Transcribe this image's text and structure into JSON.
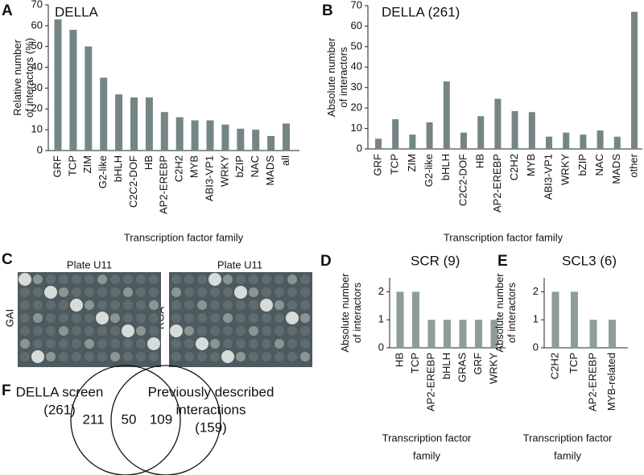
{
  "chart_data": [
    {
      "type": "bar",
      "title": "DELLA",
      "y_label": [
        "Relative number",
        "of interactors (%)"
      ],
      "x_label": "Transcription factor family",
      "categories": [
        "GRF",
        "TCP",
        "ZIM",
        "G2-like",
        "bHLH",
        "C2C2-DOF",
        "HB",
        "AP2-EREBP",
        "C2H2",
        "MYB",
        "ABI3-VP1",
        "WRKY",
        "bZIP",
        "NAC",
        "MADS",
        "all"
      ],
      "values": [
        63,
        58,
        50,
        35,
        27,
        25.5,
        25.5,
        18.5,
        16,
        14.5,
        14.5,
        12.5,
        10.5,
        10,
        7,
        13
      ],
      "color": "#758585",
      "ylim": [
        0,
        70
      ],
      "yticks": [
        0,
        10,
        20,
        30,
        40,
        50,
        60,
        70
      ]
    },
    {
      "type": "bar",
      "title": "DELLA (261)",
      "y_label": [
        "Absolute number",
        "of interactors"
      ],
      "x_label": "Transcription factor family",
      "categories": [
        "GRF",
        "TCP",
        "ZIM",
        "G2-like",
        "bHLH",
        "C2C2-DOF",
        "HB",
        "AP2-EREBP",
        "C2H2",
        "MYB",
        "ABI3-VP1",
        "WRKY",
        "bZIP",
        "NAC",
        "MADS",
        "other"
      ],
      "values": [
        5,
        14.5,
        7,
        13,
        33,
        8,
        16,
        24.5,
        18.5,
        18,
        6,
        8,
        7,
        9,
        6,
        67
      ],
      "color": "#758585",
      "ylim": [
        0,
        70
      ],
      "yticks": [
        0,
        10,
        20,
        30,
        40,
        50,
        60,
        70
      ]
    },
    {
      "type": "bar",
      "title": "SCR (9)",
      "y_label": [
        "Absolute number",
        "of interactors"
      ],
      "x_label": [
        "Transcription factor",
        "family"
      ],
      "categories": [
        "HB",
        "TCP",
        "AP2-EREBP",
        "bHLH",
        "GRAS",
        "GRF",
        "WRKY"
      ],
      "values": [
        2,
        2,
        1,
        1,
        1,
        1,
        1
      ],
      "color": "#8e9c9c",
      "ylim": [
        0,
        2.5
      ],
      "yticks": [
        0,
        1,
        2
      ]
    },
    {
      "type": "bar",
      "title": "SCL3 (6)",
      "y_label": [
        "Absolute number",
        "of interactors"
      ],
      "x_label": [
        "Transcription factor",
        "family"
      ],
      "categories": [
        "C2H2",
        "TCP",
        "AP2-EREBP",
        "MYB-related"
      ],
      "values": [
        2,
        2,
        1,
        1
      ],
      "color": "#8e9c9c",
      "ylim": [
        0,
        2.5
      ],
      "yticks": [
        0,
        1,
        2
      ]
    }
  ],
  "panel_labels": [
    "A",
    "B",
    "C",
    "D",
    "E",
    "F"
  ],
  "plates": [
    {
      "title": "Plate U11",
      "side_label": "GAI"
    },
    {
      "title": "Plate U11",
      "side_label": "RGA"
    }
  ],
  "venn": {
    "left_label": [
      "DELLA screen",
      "(261)"
    ],
    "right_label": [
      "Previously described",
      "interactions",
      "(159)"
    ],
    "left_only": "211",
    "overlap": "50",
    "right_only": "109"
  }
}
